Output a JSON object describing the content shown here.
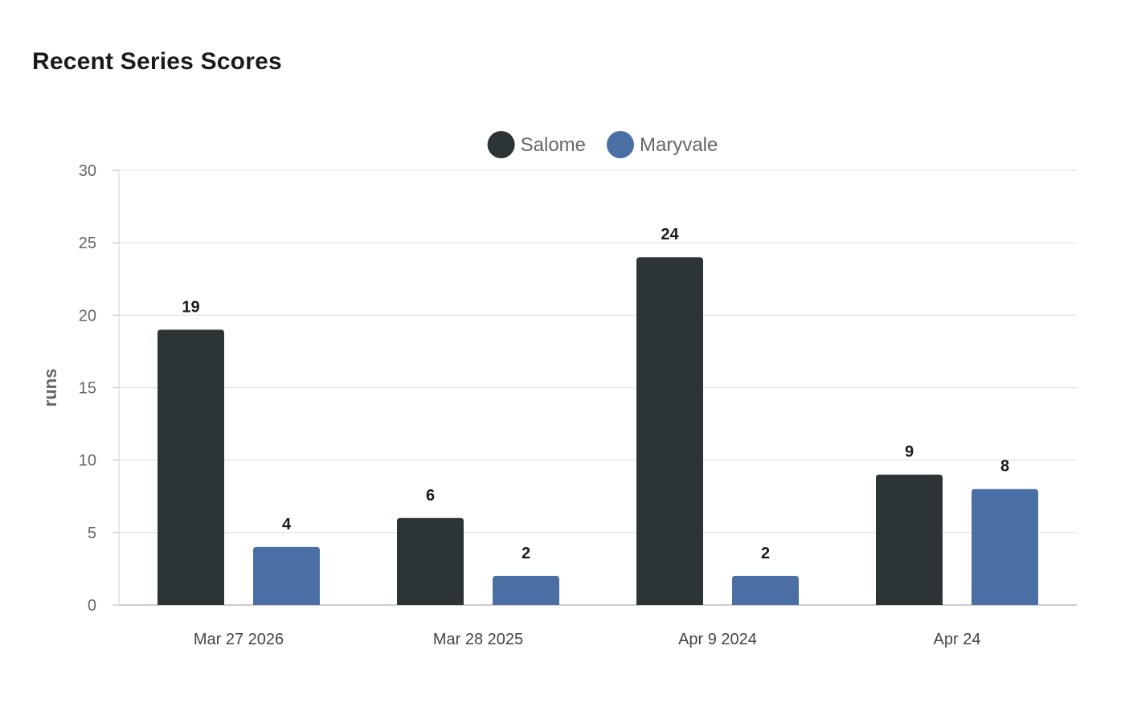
{
  "title": "Recent Series Scores",
  "chart_data": {
    "type": "bar",
    "title": "Recent Series Scores",
    "xlabel": "",
    "ylabel": "runs",
    "categories": [
      "Mar 27 2026",
      "Mar 28 2025",
      "Apr 9 2024",
      "Apr 24"
    ],
    "series": [
      {
        "name": "Salome",
        "values": [
          19,
          6,
          24,
          9
        ],
        "color": "#2d3436"
      },
      {
        "name": "Maryvale",
        "values": [
          4,
          2,
          2,
          8
        ],
        "color": "#4a6fa5"
      }
    ],
    "ylim": [
      0,
      30
    ],
    "yticks": [
      0,
      5,
      10,
      15,
      20,
      25,
      30
    ],
    "grid": true,
    "legend_position": "top-center",
    "data_labels": true
  }
}
